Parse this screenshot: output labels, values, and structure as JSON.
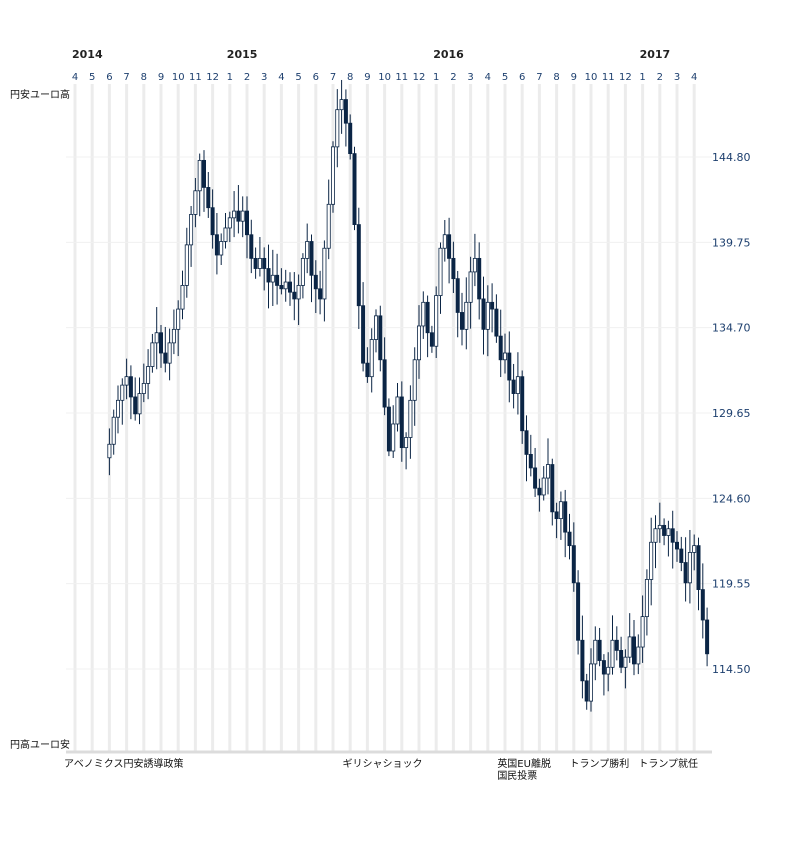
{
  "chart_data": {
    "type": "candlestick",
    "years": [
      {
        "label": "2014",
        "at_month": 0
      },
      {
        "label": "2015",
        "at_month": 9
      },
      {
        "label": "2016",
        "at_month": 21
      },
      {
        "label": "2017",
        "at_month": 33
      }
    ],
    "month_labels": [
      "4",
      "5",
      "6",
      "7",
      "8",
      "9",
      "10",
      "11",
      "12",
      "1",
      "2",
      "3",
      "4",
      "5",
      "6",
      "7",
      "8",
      "9",
      "10",
      "11",
      "12",
      "1",
      "2",
      "3",
      "4",
      "5",
      "6",
      "7",
      "8",
      "9",
      "10",
      "11",
      "12",
      "1",
      "2",
      "3",
      "4"
    ],
    "y_ticks": [
      144.8,
      139.75,
      134.7,
      129.65,
      124.6,
      119.55,
      114.5
    ],
    "y_tick_labels": [
      "144.80",
      "139.75",
      "134.70",
      "129.65",
      "124.60",
      "119.55",
      "114.50"
    ],
    "ylim": [
      110.8,
      149.0
    ],
    "top_label": "円安ユーロ高",
    "bottom_label": "円高ユーロ安",
    "grid": true,
    "weekly_close": [
      [
        2,
        127.8
      ],
      [
        2.25,
        129.4
      ],
      [
        2.5,
        130.4
      ],
      [
        2.75,
        131.3
      ],
      [
        3,
        131.8
      ],
      [
        3.25,
        130.6
      ],
      [
        3.5,
        129.6
      ],
      [
        3.75,
        130.8
      ],
      [
        4,
        131.4
      ],
      [
        4.25,
        132.4
      ],
      [
        4.5,
        133.8
      ],
      [
        4.75,
        134.4
      ],
      [
        5,
        133.2
      ],
      [
        5.25,
        132.6
      ],
      [
        5.5,
        133.8
      ],
      [
        5.75,
        134.6
      ],
      [
        6,
        135.8
      ],
      [
        6.25,
        137.2
      ],
      [
        6.5,
        139.6
      ],
      [
        6.75,
        141.4
      ],
      [
        7,
        142.8
      ],
      [
        7.25,
        144.6
      ],
      [
        7.5,
        143.0
      ],
      [
        7.75,
        141.8
      ],
      [
        8,
        140.2
      ],
      [
        8.25,
        139.0
      ],
      [
        8.5,
        139.8
      ],
      [
        8.75,
        140.6
      ],
      [
        9,
        141.2
      ],
      [
        9.25,
        141.6
      ],
      [
        9.5,
        141.0
      ],
      [
        9.75,
        141.6
      ],
      [
        10,
        140.2
      ],
      [
        10.25,
        138.8
      ],
      [
        10.5,
        138.2
      ],
      [
        10.75,
        138.8
      ],
      [
        11,
        138.2
      ],
      [
        11.25,
        137.4
      ],
      [
        11.5,
        137.8
      ],
      [
        11.75,
        137.2
      ],
      [
        12,
        137.0
      ],
      [
        12.25,
        137.4
      ],
      [
        12.5,
        136.8
      ],
      [
        12.75,
        136.4
      ],
      [
        13,
        137.2
      ],
      [
        13.25,
        138.8
      ],
      [
        13.5,
        139.8
      ],
      [
        13.75,
        137.8
      ],
      [
        14,
        137.0
      ],
      [
        14.25,
        136.4
      ],
      [
        14.5,
        139.4
      ],
      [
        14.75,
        142.0
      ],
      [
        15,
        145.4
      ],
      [
        15.25,
        147.6
      ],
      [
        15.5,
        148.2
      ],
      [
        15.75,
        146.8
      ],
      [
        16,
        145.0
      ],
      [
        16.25,
        140.8
      ],
      [
        16.5,
        136.0
      ],
      [
        16.75,
        132.6
      ],
      [
        17,
        131.8
      ],
      [
        17.25,
        134.0
      ],
      [
        17.5,
        135.4
      ],
      [
        17.75,
        132.8
      ],
      [
        18,
        130.0
      ],
      [
        18.25,
        127.4
      ],
      [
        18.5,
        129.0
      ],
      [
        18.75,
        130.6
      ],
      [
        19,
        127.6
      ],
      [
        19.25,
        128.2
      ],
      [
        19.5,
        130.4
      ],
      [
        19.75,
        132.8
      ],
      [
        20,
        134.8
      ],
      [
        20.25,
        136.2
      ],
      [
        20.5,
        134.4
      ],
      [
        20.75,
        133.6
      ],
      [
        21,
        136.6
      ],
      [
        21.25,
        139.4
      ],
      [
        21.5,
        140.2
      ],
      [
        21.75,
        138.8
      ],
      [
        22,
        137.6
      ],
      [
        22.25,
        135.6
      ],
      [
        22.5,
        134.6
      ],
      [
        22.75,
        136.2
      ],
      [
        23,
        138.0
      ],
      [
        23.25,
        138.8
      ],
      [
        23.5,
        136.4
      ],
      [
        23.75,
        134.6
      ],
      [
        24,
        136.2
      ],
      [
        24.25,
        135.8
      ],
      [
        24.5,
        134.2
      ],
      [
        24.75,
        132.8
      ],
      [
        25,
        133.2
      ],
      [
        25.25,
        131.6
      ],
      [
        25.5,
        130.8
      ],
      [
        25.75,
        131.8
      ],
      [
        26,
        128.6
      ],
      [
        26.25,
        127.2
      ],
      [
        26.5,
        126.4
      ],
      [
        26.75,
        125.2
      ],
      [
        27,
        124.8
      ],
      [
        27.25,
        125.8
      ],
      [
        27.5,
        126.6
      ],
      [
        27.75,
        123.8
      ],
      [
        28,
        123.4
      ],
      [
        28.25,
        124.4
      ],
      [
        28.5,
        122.6
      ],
      [
        28.75,
        121.8
      ],
      [
        29,
        119.6
      ],
      [
        29.25,
        116.2
      ],
      [
        29.5,
        113.8
      ],
      [
        29.75,
        112.6
      ],
      [
        30,
        114.8
      ],
      [
        30.25,
        116.2
      ],
      [
        30.5,
        115.0
      ],
      [
        30.75,
        114.2
      ],
      [
        31,
        114.6
      ],
      [
        31.25,
        116.2
      ],
      [
        31.5,
        115.6
      ],
      [
        31.75,
        114.6
      ],
      [
        32,
        115.2
      ],
      [
        32.25,
        116.4
      ],
      [
        32.5,
        114.8
      ],
      [
        32.75,
        115.8
      ],
      [
        33,
        117.6
      ],
      [
        33.25,
        119.8
      ],
      [
        33.5,
        122.0
      ],
      [
        33.75,
        122.8
      ],
      [
        34,
        123.0
      ],
      [
        34.25,
        122.4
      ],
      [
        34.5,
        122.8
      ],
      [
        34.75,
        122.0
      ],
      [
        35,
        121.6
      ],
      [
        35.25,
        120.8
      ],
      [
        35.5,
        119.6
      ],
      [
        35.75,
        121.4
      ],
      [
        36,
        121.8
      ],
      [
        36.25,
        119.2
      ],
      [
        36.5,
        117.4
      ],
      [
        36.75,
        115.4
      ]
    ],
    "annotations": [
      {
        "lines": [
          "アベノミクス円安誘導政策"
        ],
        "at_month": 0
      },
      {
        "lines": [
          "ギリシャショック"
        ],
        "at_month": 16.6
      },
      {
        "lines": [
          "英国EU離脱",
          "国民投票"
        ],
        "at_month": 25.6
      },
      {
        "lines": [
          "トランプ勝利"
        ],
        "at_month": 29.8
      },
      {
        "lines": [
          "トランプ就任"
        ],
        "at_month": 33.8
      }
    ]
  },
  "colors": {
    "candle": "#0b2545",
    "axis_text": "#1d3f6e",
    "band": "#ececec",
    "grid": "#f0f0f0"
  }
}
